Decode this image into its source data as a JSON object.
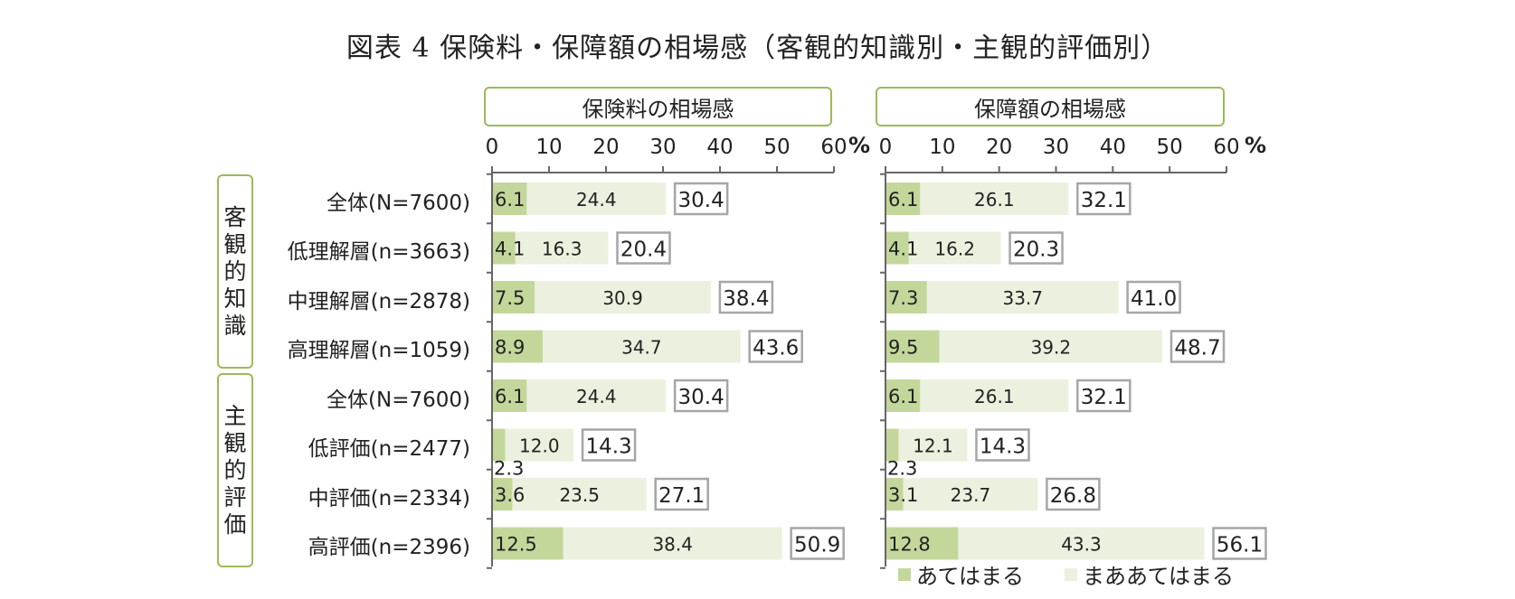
{
  "title": "図表 4 保険料・保障額の相場感（客観的知識別・主観的評価別）",
  "axis_unit": "%",
  "groups": [
    {
      "label": [
        "客",
        "観",
        "的",
        "知",
        "識"
      ]
    },
    {
      "label": [
        "主",
        "観",
        "的",
        "評",
        "価"
      ]
    }
  ],
  "rows": [
    "全体(N=7600)",
    "低理解層(n=3663)",
    "中理解層(n=2878)",
    "高理解層(n=1059)",
    "全体(N=7600)",
    "低評価(n=2477)",
    "中評価(n=2334)",
    "高評価(n=2396)"
  ],
  "legend": [
    "あてはまる",
    "まああてはまる"
  ],
  "colors": {
    "series1": "#c4d79b",
    "series2": "#ebf1de",
    "frame": "#9bbb59",
    "total_box": "#a6a6a6"
  },
  "chart_data": [
    {
      "type": "bar",
      "orientation": "horizontal",
      "stacked": true,
      "title": "保険料の相場感",
      "xlim": [
        0,
        60
      ],
      "xticks": [
        0,
        10,
        20,
        30,
        40,
        50,
        60
      ],
      "categories": [
        "全体(N=7600)",
        "低理解層(n=3663)",
        "中理解層(n=2878)",
        "高理解層(n=1059)",
        "全体(N=7600)",
        "低評価(n=2477)",
        "中評価(n=2334)",
        "高評価(n=2396)"
      ],
      "series": [
        {
          "name": "あてはまる",
          "values": [
            6.1,
            4.1,
            7.5,
            8.9,
            6.1,
            2.3,
            3.6,
            12.5
          ]
        },
        {
          "name": "まああてはまる",
          "values": [
            24.4,
            16.3,
            30.9,
            34.7,
            24.4,
            12.0,
            23.5,
            38.4
          ]
        }
      ],
      "totals": [
        30.4,
        20.4,
        38.4,
        43.6,
        30.4,
        14.3,
        27.1,
        50.9
      ]
    },
    {
      "type": "bar",
      "orientation": "horizontal",
      "stacked": true,
      "title": "保障額の相場感",
      "xlim": [
        0,
        60
      ],
      "xticks": [
        0,
        10,
        20,
        30,
        40,
        50,
        60
      ],
      "categories": [
        "全体(N=7600)",
        "低理解層(n=3663)",
        "中理解層(n=2878)",
        "高理解層(n=1059)",
        "全体(N=7600)",
        "低評価(n=2477)",
        "中評価(n=2334)",
        "高評価(n=2396)"
      ],
      "series": [
        {
          "name": "あてはまる",
          "values": [
            6.1,
            4.1,
            7.3,
            9.5,
            6.1,
            2.3,
            3.1,
            12.8
          ]
        },
        {
          "name": "まああてはまる",
          "values": [
            26.1,
            16.2,
            33.7,
            39.2,
            26.1,
            12.1,
            23.7,
            43.3
          ]
        }
      ],
      "totals": [
        32.1,
        20.3,
        41.0,
        48.7,
        32.1,
        14.3,
        26.8,
        56.1
      ]
    }
  ]
}
